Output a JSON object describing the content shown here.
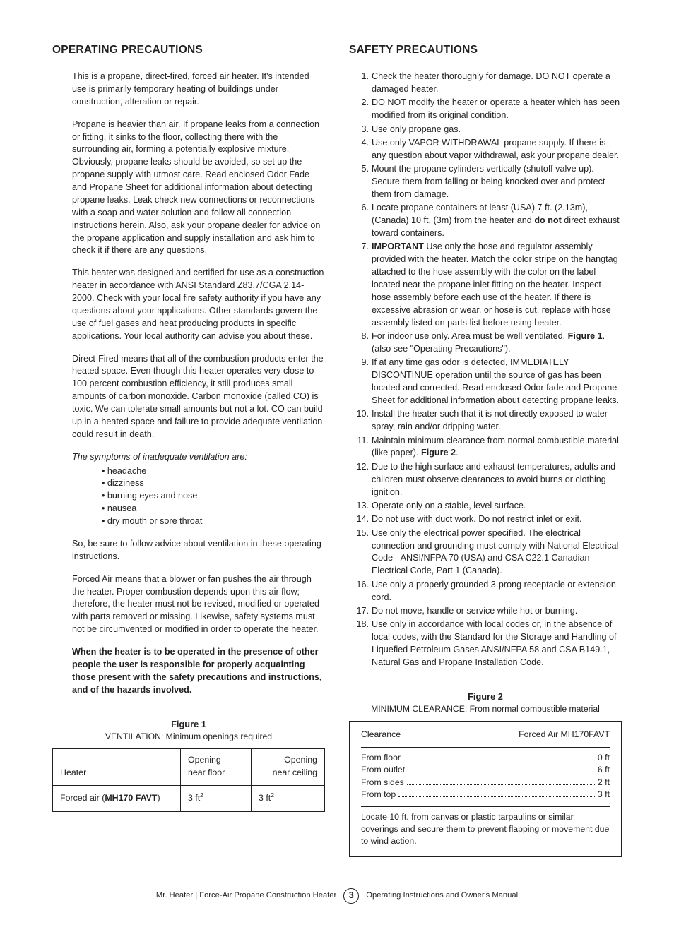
{
  "left": {
    "heading": "Operating Precautions",
    "p1": "This is a propane, direct-fired, forced air heater. It's intended use is primarily temporary heating of buildings under construction, alteration or repair.",
    "p2": "Propane is heavier than air. If propane leaks from a connection or fitting, it sinks to the floor, collecting there with the surrounding air, forming a potentially explosive mixture. Obviously, propane leaks should be avoided, so set up the propane supply with utmost care. Read enclosed Odor Fade and Propane Sheet for additional information about detecting propane leaks. Leak check new connections or reconnections with a soap and water solution and follow all connection instructions herein. Also, ask your propane dealer for advice on the propane application and supply installation and ask him to check it if there are any questions.",
    "p3": "This heater was designed and certified for use as a construction heater in accordance with ANSI Standard Z83.7/CGA 2.14-2000. Check with your local fire safety authority if you have any questions about your applications. Other standards govern the use of fuel gases and heat producing products in specific applications. Your local authority can advise you about these.",
    "p4": "Direct-Fired means that all of the combustion products enter the heated space. Even though this heater operates very close to 100 percent combustion efficiency, it still produces small amounts of carbon monoxide. Carbon monoxide (called CO) is toxic. We can tolerate small amounts but not a lot. CO can build up in a heated space and failure to provide adequate ventilation could result in death.",
    "symptom_lead": "The symptoms of inadequate ventilation are:",
    "symptoms": [
      "headache",
      "dizziness",
      "burning eyes and nose",
      "nausea",
      "dry mouth or sore throat"
    ],
    "p5": "So, be sure to follow advice about ventilation in these operating instructions.",
    "p6": "Forced Air means that a blower or fan pushes the air through the heater. Proper combustion depends upon this air flow; therefore, the heater must not be revised, modified or operated with parts removed or missing. Likewise, safety systems must not be circumvented or modified in order to operate the heater.",
    "p7_bold": "When the heater is to be operated in the presence of other people the user is responsible for properly acquainting those present with the safety precautions and instructions, and of the hazards involved.",
    "fig1": {
      "title": "Figure 1",
      "subtitle": "VENTILATION: Minimum openings required",
      "col_heater": "Heater",
      "col_floor_l1": "Opening",
      "col_floor_l2": "near floor",
      "col_ceil_l1": "Opening",
      "col_ceil_l2": "near ceiling",
      "row_label_pre": "Forced air (",
      "row_label_bold": "MH170 FAVT",
      "row_label_post": ")",
      "v1": "3 ft",
      "v2": "3 ft",
      "sup": "2"
    }
  },
  "right": {
    "heading": "Safety Precautions",
    "items": [
      {
        "pre": "Check the heater thoroughly for damage. DO NOT operate a damaged heater."
      },
      {
        "pre": "DO NOT modify the heater or operate a heater which has been modified from its original condition."
      },
      {
        "pre": "Use only propane gas."
      },
      {
        "pre": "Use only VAPOR WITHDRAWAL propane supply. If there is any question about vapor withdrawal, ask your propane dealer."
      },
      {
        "pre": "Mount the propane cylinders vertically (shutoff valve up). Secure them from falling or being knocked over and protect them from damage."
      },
      {
        "pre": "Locate propane containers at least (USA) 7 ft. (2.13m), (Canada) 10 ft. (3m) from the heater and ",
        "bold": "do not",
        "post": " direct exhaust toward containers."
      },
      {
        "bold_lead": "IMPORTANT",
        "pre": " Use only the hose and regulator assembly provided with the heater. Match the color stripe on the hangtag attached to the hose assembly with the color on the label located near the propane inlet fitting on the heater. Inspect hose assembly before each use of the heater. If there is excessive abrasion or wear, or hose is cut, replace with hose assembly listed on parts list before using heater."
      },
      {
        "pre": "For indoor use only. Area must be well ventilated. ",
        "bold": "Figure 1",
        "post": ". (also see \"Operating Precautions\")."
      },
      {
        "pre": "If at any time gas odor is detected, IMMEDIATELY DISCONTINUE operation until the source of gas has been located and corrected. Read enclosed Odor fade and Propane Sheet for additional information about detecting propane leaks."
      },
      {
        "pre": "Install the heater such that it is not directly exposed to water spray, rain and/or dripping water."
      },
      {
        "pre": "Maintain minimum clearance from normal combustible material (like paper). ",
        "bold": "Figure 2",
        "post": "."
      },
      {
        "pre": "Due to the high surface and exhaust temperatures, adults and children must observe clearances to avoid burns or clothing ignition."
      },
      {
        "pre": "Operate only on a stable, level surface."
      },
      {
        "pre": "Do not use with duct work. Do not restrict inlet or exit."
      },
      {
        "pre": "Use only the electrical power specified. The electrical connection and grounding must comply with National Electrical Code - ANSI/NFPA 70 (USA) and CSA C22.1 Canadian Electrical Code, Part 1 (Canada)."
      },
      {
        "pre": "Use only a properly grounded 3-prong receptacle or extension cord."
      },
      {
        "pre": "Do not move, handle or service while hot or burning."
      },
      {
        "pre": "Use only in accordance with local codes or, in the absence of local codes, with the Standard for the Storage and Handling of Liquefied Petroleum Gases ANSI/NFPA 58 and CSA B149.1, Natural Gas and Propane Installation Code."
      }
    ],
    "fig2": {
      "title": "Figure 2",
      "subtitle": "MINIMUM CLEARANCE: From normal combustible material",
      "head_left": "Clearance",
      "head_right": "Forced Air MH170FAVT",
      "rows": [
        {
          "label": "From floor",
          "value": "0 ft"
        },
        {
          "label": "From outlet",
          "value": "6 ft"
        },
        {
          "label": "From sides",
          "value": "2 ft"
        },
        {
          "label": "From top",
          "value": "3 ft"
        }
      ],
      "note": "Locate 10 ft. from canvas or plastic tarpaulins or similar coverings and secure them to prevent flapping or movement due to wind action."
    }
  },
  "footer": {
    "left": "Mr. Heater | Force-Air Propane Construction Heater",
    "page": "3",
    "right": "Operating Instructions and Owner's Manual"
  }
}
